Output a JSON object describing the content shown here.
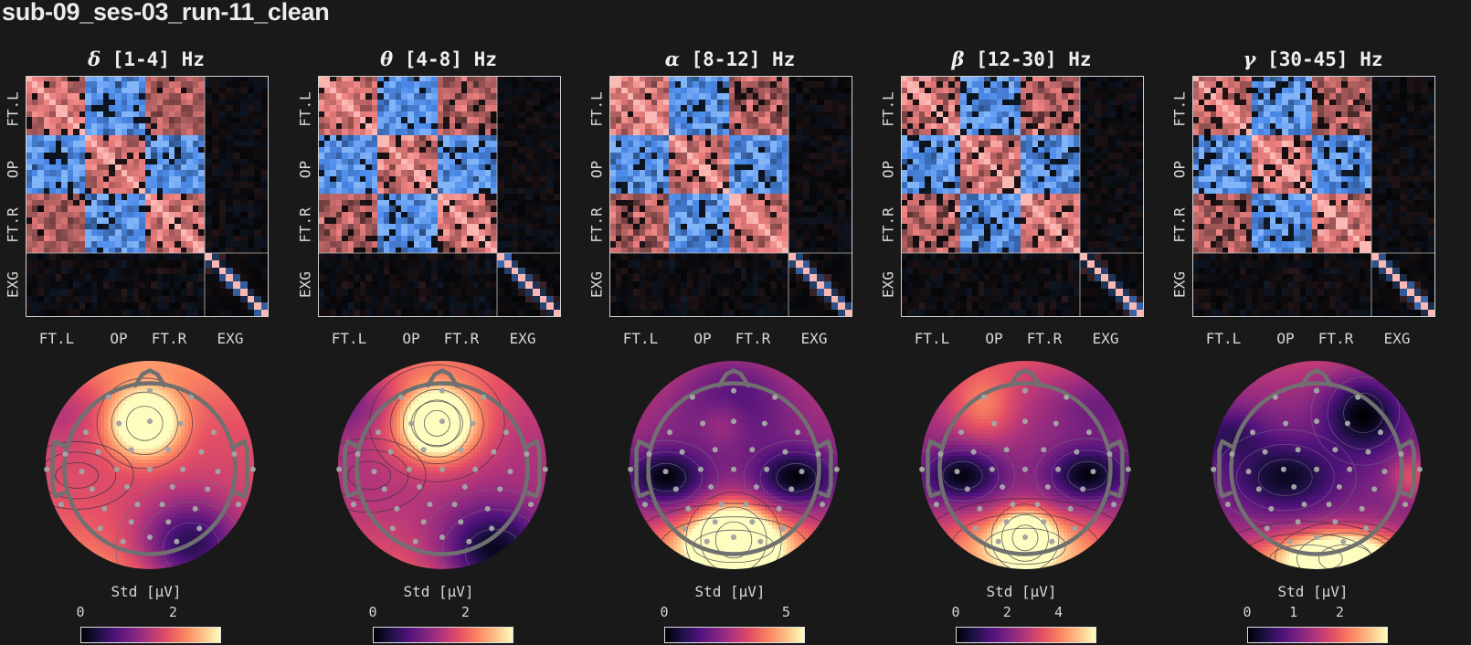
{
  "title": "sub-09_ses-03_run-11_clean",
  "colors": {
    "background": "#191919",
    "positive": "#ee7a7a",
    "negative": "#4d8fef",
    "head_outline": "#6e6e6e",
    "sensor": "#a3a3a3"
  },
  "chart_data": [
    {
      "type": "heatmap",
      "greek": "δ",
      "band": "[1-4] Hz",
      "title": "δ [1-4] Hz",
      "x_ticks": [
        "FT.L",
        "OP",
        "FT.R",
        "EXG"
      ],
      "y_ticks": [
        "FT.L",
        "OP",
        "FT.R",
        "EXG"
      ],
      "topomap": {
        "colorbar_label": "Std [µV]",
        "colorbar_ticks": [
          "0",
          "2"
        ],
        "colorbar_tick_values": [
          0,
          2
        ],
        "colorbar_range": [
          0,
          3.0
        ]
      }
    },
    {
      "type": "heatmap",
      "greek": "θ",
      "band": "[4-8] Hz",
      "title": "θ [4-8] Hz",
      "x_ticks": [
        "FT.L",
        "OP",
        "FT.R",
        "EXG"
      ],
      "y_ticks": [
        "FT.L",
        "OP",
        "FT.R",
        "EXG"
      ],
      "topomap": {
        "colorbar_label": "Std [µV]",
        "colorbar_ticks": [
          "0",
          "2"
        ],
        "colorbar_tick_values": [
          0,
          2
        ],
        "colorbar_range": [
          0,
          3.0
        ]
      }
    },
    {
      "type": "heatmap",
      "greek": "α",
      "band": "[8-12] Hz",
      "title": "α [8-12] Hz",
      "x_ticks": [
        "FT.L",
        "OP",
        "FT.R",
        "EXG"
      ],
      "y_ticks": [
        "FT.L",
        "OP",
        "FT.R",
        "EXG"
      ],
      "topomap": {
        "colorbar_label": "Std [µV]",
        "colorbar_ticks": [
          "0",
          "5"
        ],
        "colorbar_tick_values": [
          0,
          5
        ],
        "colorbar_range": [
          0,
          5.7
        ]
      }
    },
    {
      "type": "heatmap",
      "greek": "β",
      "band": "[12-30] Hz",
      "title": "β [12-30] Hz",
      "x_ticks": [
        "FT.L",
        "OP",
        "FT.R",
        "EXG"
      ],
      "y_ticks": [
        "FT.L",
        "OP",
        "FT.R",
        "EXG"
      ],
      "topomap": {
        "colorbar_label": "Std [µV]",
        "colorbar_ticks": [
          "0",
          "2",
          "4"
        ],
        "colorbar_tick_values": [
          0,
          2,
          4
        ],
        "colorbar_range": [
          0,
          5.4
        ]
      }
    },
    {
      "type": "heatmap",
      "greek": "γ",
      "band": "[30-45] Hz",
      "title": "γ [30-45] Hz",
      "x_ticks": [
        "FT.L",
        "OP",
        "FT.R",
        "EXG"
      ],
      "y_ticks": [
        "FT.L",
        "OP",
        "FT.R",
        "EXG"
      ],
      "topomap": {
        "colorbar_label": "Std [µV]",
        "colorbar_ticks": [
          "0",
          "1",
          "2"
        ],
        "colorbar_tick_values": [
          0,
          1,
          2
        ],
        "colorbar_range": [
          0,
          3.0
        ]
      }
    }
  ]
}
